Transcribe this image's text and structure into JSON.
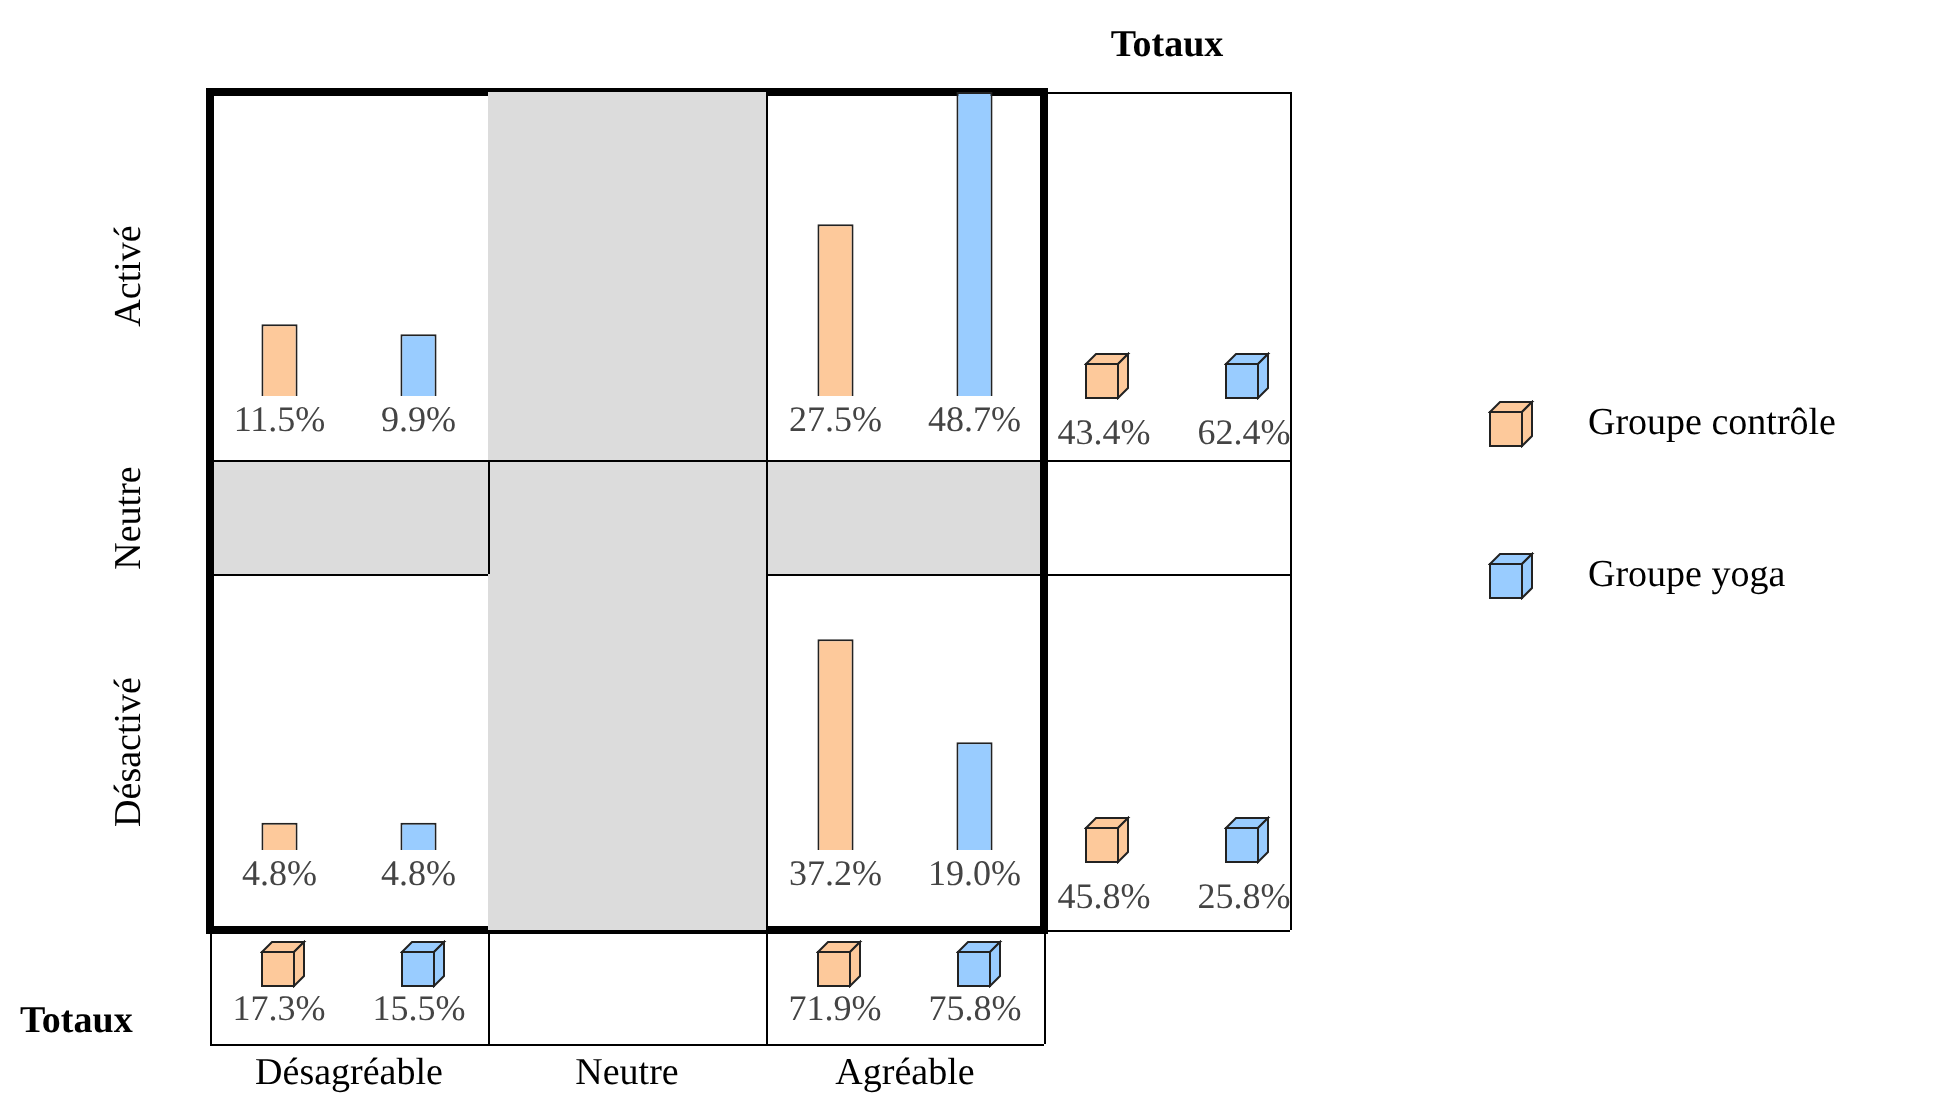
{
  "chart_data": [
    {
      "type": "bar",
      "ylabel": "Activé",
      "categories": [
        "Désagréable",
        "Neutre",
        "Agréable"
      ],
      "legend": "right",
      "tick_labels": false,
      "bands": [
        {
          "axis": "x",
          "from": "Neutre",
          "to": "Neutre",
          "color": "#dcdcdc"
        }
      ],
      "series": [
        {
          "name": "Groupe contrôle",
          "color": "#fdc99b",
          "values": [
            11.5,
            null,
            27.5
          ],
          "value_labels": [
            "11.5%",
            null,
            "27.5%"
          ]
        },
        {
          "name": "Groupe yoga",
          "color": "#99ccff",
          "values": [
            9.9,
            null,
            48.7
          ],
          "value_labels": [
            "9.9%",
            null,
            "48.7%"
          ]
        }
      ]
    },
    {
      "type": "other",
      "ylabel": "Neutre"
    },
    {
      "type": "bar",
      "ylabel": "Désactivé",
      "categories": [
        "Désagréable",
        "Neutre",
        "Agréable"
      ],
      "tick_labels": "x",
      "bands": [
        {
          "axis": "x",
          "from": "Neutre",
          "to": "Neutre",
          "color": "#dcdcdc"
        }
      ],
      "series": [
        {
          "color": "#fdc99b",
          "values": [
            4.8,
            null,
            37.2
          ],
          "value_labels": [
            "4.8%",
            null,
            "37.2%"
          ]
        },
        {
          "color": "#99ccff",
          "values": [
            4.8,
            null,
            19.0
          ],
          "value_labels": [
            "4.8%",
            null,
            "19.0%"
          ]
        }
      ]
    },
    {
      "type": "other",
      "title": "Totaux",
      "annotations": [
        "43.4%",
        "62.4%",
        "45.8%",
        "25.8%"
      ]
    },
    {
      "type": "other",
      "ylabel": "Totaux",
      "annotations": [
        "17.3%",
        "15.5%",
        "71.9%",
        "75.8%"
      ]
    }
  ]
}
